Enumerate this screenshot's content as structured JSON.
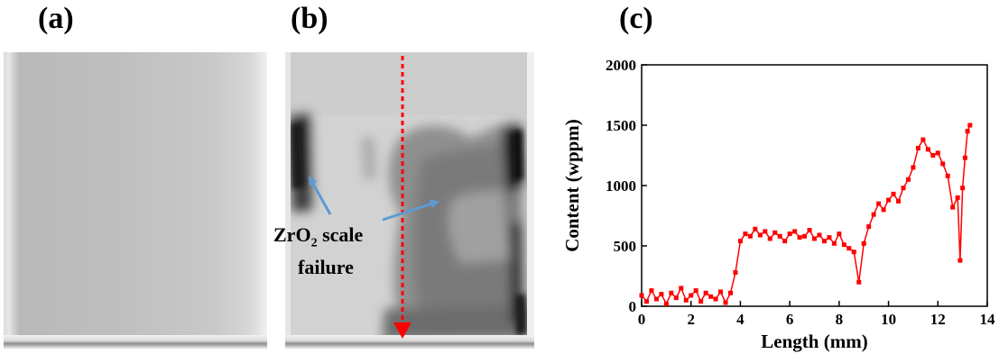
{
  "panels": {
    "a": "(a)",
    "b": "(b)",
    "c": "(c)"
  },
  "annotation": {
    "line1_prefix": "ZrO",
    "line1_sub": "2",
    "line1_suffix": " scale",
    "line2": "failure"
  },
  "colors": {
    "data": "#ff0000",
    "arrow_blue": "#5b9bd5",
    "dashed_red": "#ff0000"
  },
  "chart_data": {
    "type": "line",
    "xlabel": "Length (mm)",
    "ylabel": "Content (wppm)",
    "xlim": [
      0,
      14
    ],
    "ylim": [
      0,
      2000
    ],
    "xticks": [
      0,
      2,
      4,
      6,
      8,
      10,
      12,
      14
    ],
    "yticks": [
      0,
      500,
      1000,
      1500,
      2000
    ],
    "series": [
      {
        "color": "#ff0000",
        "marker": "square",
        "x": [
          0.0,
          0.2,
          0.4,
          0.6,
          0.8,
          1.0,
          1.2,
          1.4,
          1.6,
          1.8,
          2.0,
          2.2,
          2.4,
          2.6,
          2.8,
          3.0,
          3.2,
          3.4,
          3.6,
          3.8,
          4.0,
          4.2,
          4.4,
          4.6,
          4.8,
          5.0,
          5.2,
          5.4,
          5.6,
          5.8,
          6.0,
          6.2,
          6.4,
          6.6,
          6.8,
          7.0,
          7.2,
          7.4,
          7.6,
          7.8,
          8.0,
          8.2,
          8.4,
          8.6,
          8.8,
          9.0,
          9.2,
          9.4,
          9.6,
          9.8,
          10.0,
          10.2,
          10.4,
          10.6,
          10.8,
          11.0,
          11.2,
          11.4,
          11.6,
          11.8,
          12.0,
          12.2,
          12.4,
          12.6,
          12.8,
          12.9,
          13.0,
          13.1,
          13.2,
          13.3
        ],
        "y": [
          90,
          40,
          130,
          60,
          100,
          20,
          110,
          70,
          150,
          50,
          90,
          130,
          40,
          110,
          80,
          60,
          120,
          30,
          110,
          280,
          540,
          600,
          580,
          640,
          590,
          620,
          560,
          610,
          580,
          540,
          600,
          620,
          570,
          580,
          630,
          560,
          590,
          540,
          570,
          520,
          600,
          510,
          480,
          450,
          200,
          520,
          660,
          760,
          850,
          800,
          880,
          930,
          870,
          980,
          1050,
          1150,
          1310,
          1380,
          1300,
          1250,
          1270,
          1180,
          1080,
          820,
          900,
          380,
          980,
          1230,
          1450,
          1500
        ]
      }
    ]
  }
}
